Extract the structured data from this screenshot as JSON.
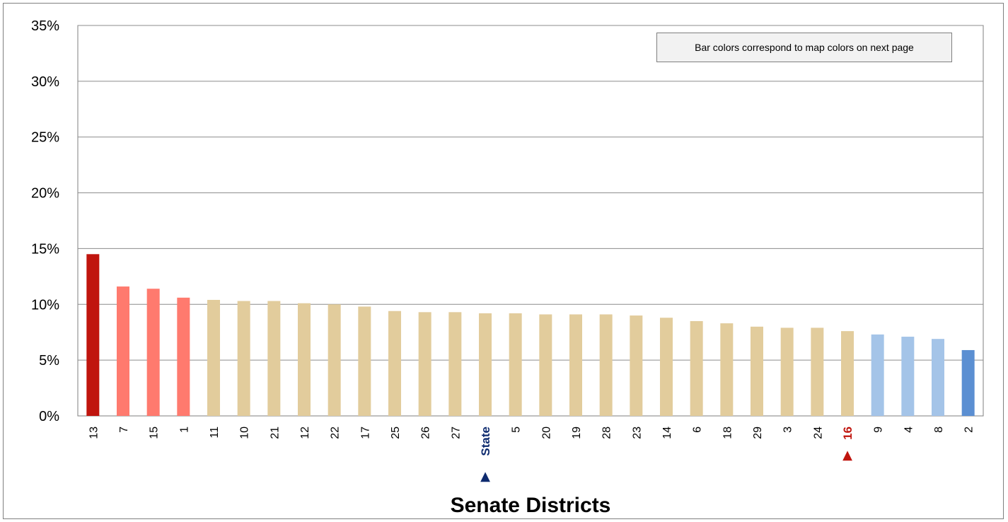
{
  "chart_data": {
    "type": "bar",
    "title": "",
    "xlabel": "Senate Districts",
    "ylabel": "",
    "ylim": [
      0,
      35
    ],
    "y_ticks": [
      "0%",
      "5%",
      "10%",
      "15%",
      "20%",
      "25%",
      "30%",
      "35%"
    ],
    "grid": true,
    "note": "Bar colors correspond to map colors on next page",
    "categories": [
      "13",
      "7",
      "15",
      "1",
      "11",
      "10",
      "21",
      "12",
      "22",
      "17",
      "25",
      "26",
      "27",
      "State",
      "5",
      "20",
      "19",
      "28",
      "23",
      "14",
      "6",
      "18",
      "29",
      "3",
      "24",
      "16",
      "9",
      "4",
      "8",
      "2"
    ],
    "values": [
      14.5,
      11.6,
      11.4,
      10.6,
      10.4,
      10.3,
      10.3,
      10.1,
      10.0,
      9.8,
      9.4,
      9.3,
      9.3,
      9.2,
      9.2,
      9.1,
      9.1,
      9.1,
      9.0,
      8.8,
      8.5,
      8.3,
      8.0,
      7.9,
      7.9,
      7.6,
      7.3,
      7.1,
      6.9,
      5.9
    ],
    "bar_colors": [
      "#c0150e",
      "#ff7a6e",
      "#ff7a6e",
      "#ff7a6e",
      "#e2cc9c",
      "#e2cc9c",
      "#e2cc9c",
      "#e2cc9c",
      "#e2cc9c",
      "#e2cc9c",
      "#e2cc9c",
      "#e2cc9c",
      "#e2cc9c",
      "#e2cc9c",
      "#e2cc9c",
      "#e2cc9c",
      "#e2cc9c",
      "#e2cc9c",
      "#e2cc9c",
      "#e2cc9c",
      "#e2cc9c",
      "#e2cc9c",
      "#e2cc9c",
      "#e2cc9c",
      "#e2cc9c",
      "#e2cc9c",
      "#a4c4e8",
      "#a4c4e8",
      "#a4c4e8",
      "#5b8fd2"
    ],
    "highlighted": {
      "State": {
        "color": "#0d2a6e",
        "marker": "▲"
      },
      "16": {
        "color": "#c0150e",
        "marker": "▲"
      }
    }
  }
}
